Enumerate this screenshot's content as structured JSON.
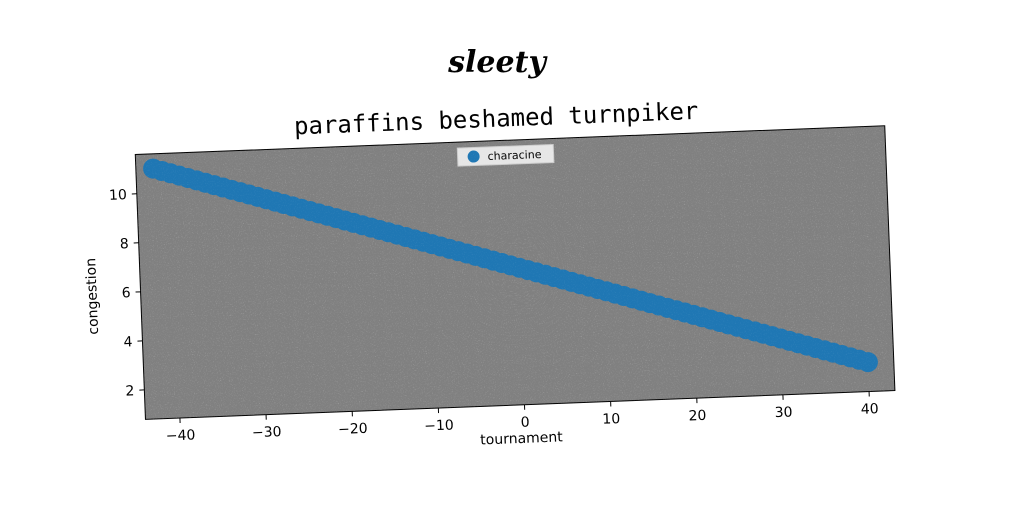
{
  "supertitle": "sleety",
  "chart_data": {
    "type": "scatter",
    "title": "paraffins beshamed turnpiker",
    "xlabel": "tournament",
    "ylabel": "congestion",
    "xlim": [
      -44,
      43
    ],
    "ylim": [
      0.8,
      11.6
    ],
    "xticks": [
      -40,
      -30,
      -20,
      -10,
      0,
      10,
      20,
      30,
      40
    ],
    "yticks": [
      2,
      4,
      6,
      8,
      10
    ],
    "xtick_labels": [
      "−40",
      "−30",
      "−20",
      "−10",
      "0",
      "10",
      "20",
      "30",
      "40"
    ],
    "ytick_labels": [
      "2",
      "4",
      "6",
      "8",
      "10"
    ],
    "legend_position": "top-center",
    "plot_background": "#808080",
    "series": [
      {
        "name": "characine",
        "color": "#1f77b4",
        "x_start": -42,
        "x_end": 40,
        "x_step": 1,
        "y_start": 11.0,
        "y_end": 2.0
      }
    ]
  }
}
